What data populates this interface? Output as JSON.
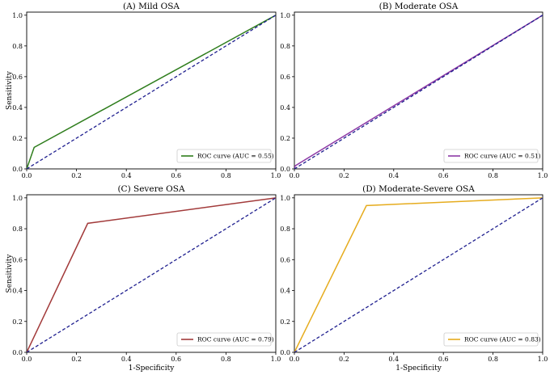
{
  "chart_data": [
    {
      "type": "line",
      "title": "(A) Mild OSA",
      "xlabel": "",
      "ylabel": "Sensitivity",
      "xlim": [
        0,
        1
      ],
      "ylim": [
        0,
        1.02
      ],
      "xticks": [
        "0.0",
        "0.2",
        "0.4",
        "0.6",
        "0.8",
        "1.0"
      ],
      "yticks": [
        "0.0",
        "0.2",
        "0.4",
        "0.6",
        "0.8",
        "1.0"
      ],
      "series": [
        {
          "name": "ROC curve (AUC = 0.55)",
          "x": [
            0,
            0.03,
            1
          ],
          "y": [
            0,
            0.14,
            1
          ],
          "color": "#2e7d1c"
        },
        {
          "name": "chance",
          "x": [
            0,
            1
          ],
          "y": [
            0,
            1
          ],
          "color": "#1f1f8f",
          "dashed": true
        }
      ],
      "legend": "ROC curve (AUC = 0.55)",
      "legend_position": "lower-right"
    },
    {
      "type": "line",
      "title": "(B) Moderate OSA",
      "xlabel": "",
      "ylabel": "",
      "xlim": [
        0,
        1
      ],
      "ylim": [
        0,
        1.02
      ],
      "xticks": [
        "0.0",
        "0.2",
        "0.4",
        "0.6",
        "0.8",
        "1.0"
      ],
      "yticks": [
        "0.0",
        "0.2",
        "0.4",
        "0.6",
        "0.8",
        "1.0"
      ],
      "series": [
        {
          "name": "ROC curve (AUC = 0.51)",
          "x": [
            0,
            0.003,
            1
          ],
          "y": [
            0,
            0.02,
            1
          ],
          "color": "#8e3aa6"
        },
        {
          "name": "chance",
          "x": [
            0,
            1
          ],
          "y": [
            0,
            1
          ],
          "color": "#1f1f8f",
          "dashed": true
        }
      ],
      "legend": "ROC curve (AUC = 0.51)",
      "legend_position": "lower-right"
    },
    {
      "type": "line",
      "title": "(C) Severe OSA",
      "xlabel": "1-Specificity",
      "ylabel": "Sensitivity",
      "xlim": [
        0,
        1
      ],
      "ylim": [
        0,
        1.02
      ],
      "xticks": [
        "0.0",
        "0.2",
        "0.4",
        "0.6",
        "0.8",
        "1.0"
      ],
      "yticks": [
        "0.0",
        "0.2",
        "0.4",
        "0.6",
        "0.8",
        "1.0"
      ],
      "series": [
        {
          "name": "ROC curve (AUC = 0.79)",
          "x": [
            0,
            0.245,
            1
          ],
          "y": [
            0,
            0.835,
            1
          ],
          "color": "#a23a3a"
        },
        {
          "name": "chance",
          "x": [
            0,
            1
          ],
          "y": [
            0,
            1
          ],
          "color": "#1f1f8f",
          "dashed": true
        }
      ],
      "legend": "ROC curve (AUC = 0.79)",
      "legend_position": "lower-right"
    },
    {
      "type": "line",
      "title": "(D) Moderate-Severe OSA",
      "xlabel": "1-Specificity",
      "ylabel": "",
      "xlim": [
        0,
        1
      ],
      "ylim": [
        0,
        1.02
      ],
      "xticks": [
        "0.0",
        "0.2",
        "0.4",
        "0.6",
        "0.8",
        "1.0"
      ],
      "yticks": [
        "0.0",
        "0.2",
        "0.4",
        "0.6",
        "0.8",
        "1.0"
      ],
      "series": [
        {
          "name": "ROC curve (AUC = 0.83)",
          "x": [
            0,
            0.29,
            1
          ],
          "y": [
            0,
            0.95,
            1
          ],
          "color": "#e6ac1e"
        },
        {
          "name": "chance",
          "x": [
            0,
            1
          ],
          "y": [
            0,
            1
          ],
          "color": "#1f1f8f",
          "dashed": true
        }
      ],
      "legend": "ROC curve (AUC = 0.83)",
      "legend_position": "lower-right"
    }
  ]
}
